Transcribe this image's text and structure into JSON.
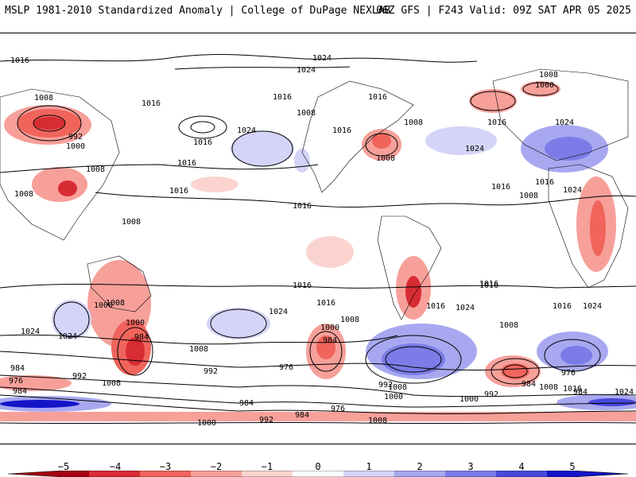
{
  "header": {
    "left_title": "MSLP 1981-2010 Standardized Anomaly | College of DuPage NEXLAB",
    "right_title": "06Z GFS | F243 Valid: 09Z SAT APR 05 2025"
  },
  "map": {
    "contour_labels": [
      "1016",
      "1024",
      "1024",
      "1008",
      "1000",
      "1008",
      "1016",
      "1016",
      "1024",
      "1016",
      "1016",
      "1008",
      "992",
      "1000",
      "1008",
      "1016",
      "1016",
      "1016",
      "1008",
      "1024",
      "1008",
      "1024",
      "1016",
      "1008",
      "1016",
      "1016",
      "1008",
      "1016",
      "1024",
      "1008",
      "1000",
      "1016",
      "1016",
      "1024",
      "1016",
      "1024",
      "1008",
      "1000",
      "984",
      "1008",
      "992",
      "976",
      "976",
      "992",
      "1008",
      "984",
      "1000",
      "984",
      "1008",
      "1000",
      "992",
      "984",
      "984",
      "976",
      "1008",
      "1000",
      "992",
      "984",
      "1016",
      "1024",
      "1000",
      "992",
      "984",
      "1008",
      "1024",
      "1008",
      "1016",
      "1016",
      "1024",
      "1016",
      "1024",
      "976",
      "984",
      "1008"
    ]
  },
  "colorbar": {
    "ticks": [
      "−5",
      "−4",
      "−3",
      "−2",
      "−1",
      "0",
      "1",
      "2",
      "3",
      "4",
      "5"
    ],
    "colors": {
      "neg5": "#a40010",
      "neg4": "#d82c34",
      "neg3": "#f0645c",
      "neg2": "#f7a09a",
      "neg1": "#fbd4d0",
      "zero": "#ffffff",
      "pos1": "#d4d4f8",
      "pos2": "#a8a8f0",
      "pos3": "#7c7ce8",
      "pos4": "#4848dc",
      "pos5": "#1414c8"
    }
  }
}
